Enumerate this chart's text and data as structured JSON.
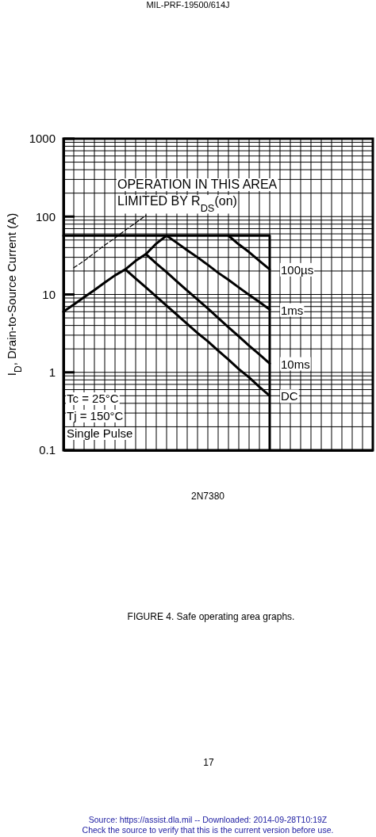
{
  "chart_data": {
    "type": "line",
    "title": "2N7380",
    "ylabel": "I$_{D}$,  Drain-to-Source Current (A)",
    "annotations": [
      "MIL-PRF-19500/614J",
      "OPERATION IN THIS AREA",
      "LIMITED BY R$_{DS}$(on)",
      "Tc = 25°C",
      "Tj = 150°C",
      "Single Pulse",
      "FIGURE 4.  Safe operating area graphs.",
      "17",
      "Source: https://assist.dla.mil -- Downloaded: 2014-09-28T10:19Z",
      "Check the source to verify that this is the current version before use."
    ],
    "categories": [
      null,
      null,
      null,
      null,
      null,
      null,
      null,
      null,
      null,
      null,
      null,
      null,
      null,
      null,
      null,
      null,
      null,
      null,
      null,
      null,
      null,
      null,
      null,
      null,
      null,
      null,
      null,
      null,
      null,
      null,
      null
    ],
    "log": "y",
    "ylim": [
      0.1,
      1000
    ],
    "yticks": [
      0.1,
      1,
      10,
      100,
      1000
    ],
    "grid": true,
    "legend": false,
    "tick_labels": "y",
    "series": [
      {
        "name": "100µs",
        "color": "#000000",
        "values": [
          null,
          null,
          null,
          null,
          null,
          null,
          null,
          null,
          null,
          null,
          null,
          null,
          null,
          null,
          null,
          null,
          57,
          44,
          35,
          27,
          21,
          null,
          null,
          null,
          null,
          null,
          null,
          null,
          null,
          null,
          null
        ]
      },
      {
        "name": "1ms",
        "color": "#000000",
        "values": [
          null,
          null,
          null,
          null,
          null,
          null,
          null,
          null,
          33,
          45,
          57,
          46,
          37,
          30,
          24,
          19,
          15.4,
          12.3,
          9.9,
          8.0,
          6.4,
          null,
          null,
          null,
          null,
          null,
          null,
          null,
          null,
          null,
          null
        ]
      },
      {
        "name": "10ms",
        "color": "#000000",
        "values": [
          null,
          null,
          null,
          null,
          null,
          null,
          21,
          27,
          33,
          25,
          19.3,
          14.7,
          11.2,
          8.6,
          6.6,
          5.0,
          3.8,
          2.9,
          2.2,
          1.7,
          1.3,
          null,
          null,
          null,
          null,
          null,
          null,
          null,
          null,
          null,
          null
        ]
      },
      {
        "name": "DC",
        "color": "#000000",
        "values": [
          6.0,
          7.4,
          9.2,
          11.4,
          14.2,
          17.6,
          21,
          16,
          12.3,
          9.4,
          7.2,
          5.5,
          4.2,
          3.2,
          2.5,
          1.9,
          1.46,
          1.1,
          0.86,
          0.65,
          0.5,
          null,
          null,
          null,
          null,
          null,
          null,
          null,
          null,
          null,
          null
        ]
      },
      {
        "type": "step",
        "color": "#000000",
        "values": [
          57,
          57,
          57,
          57,
          57,
          57,
          57,
          57,
          57,
          57,
          57,
          57,
          57,
          57,
          57,
          57,
          57,
          57,
          57,
          57,
          0.1,
          null,
          null,
          null,
          null,
          null,
          null,
          null,
          null,
          null,
          null
        ]
      },
      {
        "color": "#000000",
        "line_style": "dashed",
        "values": [
          null,
          22,
          27,
          34,
          43,
          53,
          67,
          83,
          104,
          null,
          null,
          null,
          null,
          null,
          null,
          null,
          null,
          null,
          null,
          null,
          null,
          null,
          null,
          null,
          null,
          null,
          null,
          null,
          null,
          null,
          null
        ]
      }
    ]
  }
}
